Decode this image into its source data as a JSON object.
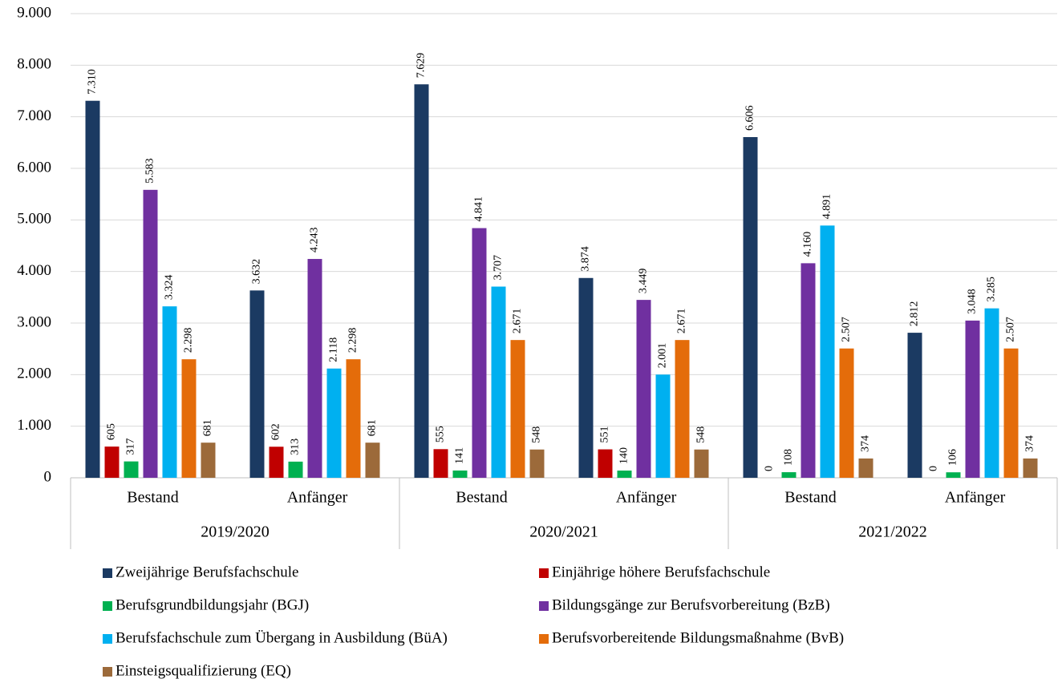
{
  "chart_data": {
    "type": "bar",
    "categories": [
      "Bestand",
      "Anfänger",
      "Bestand",
      "Anfänger",
      "Bestand",
      "Anfänger"
    ],
    "groups": [
      "2019/2020",
      "2020/2021",
      "2021/2022"
    ],
    "ylim": [
      0,
      9000
    ],
    "yticks": [
      0,
      {
        "value": 1000,
        "label": "1.000"
      },
      {
        "value": 2000,
        "label": "2.000"
      },
      {
        "value": 3000,
        "label": "3.000"
      },
      {
        "value": 4000,
        "label": "4.000"
      },
      {
        "value": 5000,
        "label": "5.000"
      },
      {
        "value": 6000,
        "label": "6.000"
      },
      {
        "value": 7000,
        "label": "7.000"
      },
      {
        "value": 8000,
        "label": "8.000"
      },
      {
        "value": 9000,
        "label": "9.000"
      }
    ],
    "grid": true,
    "legend": "bottom",
    "series": [
      {
        "name": "Zweijährige Berufsfachschule",
        "color": "#1b3a62",
        "values": [
          7310,
          3632,
          7629,
          3874,
          6606,
          2812
        ],
        "value_labels": [
          "7.310",
          "3.632",
          "7.629",
          "3.874",
          "6.606",
          "2.812"
        ]
      },
      {
        "name": "Einjährige höhere Berufsfachschule",
        "color": "#c00000",
        "values": [
          605,
          602,
          555,
          551,
          0,
          0
        ],
        "value_labels": [
          "605",
          "602",
          "555",
          "551",
          "0",
          "0"
        ]
      },
      {
        "name": "Berufsgrundbildungsjahr (BGJ)",
        "color": "#00b050",
        "values": [
          317,
          313,
          141,
          140,
          108,
          106
        ],
        "value_labels": [
          "317",
          "313",
          "141",
          "140",
          "108",
          "106"
        ]
      },
      {
        "name": "Bildungsgänge zur Berufsvorbereitung (BzB)",
        "color": "#7030a0",
        "values": [
          5583,
          4243,
          4841,
          3449,
          4160,
          3048
        ],
        "value_labels": [
          "5.583",
          "4.243",
          "4.841",
          "3.449",
          "4.160",
          "3.048"
        ]
      },
      {
        "name": "Berufsfachschule zum Übergang in Ausbildung (BüA)",
        "color": "#00b0f0",
        "values": [
          3324,
          2118,
          3707,
          2001,
          4891,
          3285
        ],
        "value_labels": [
          "3.324",
          "2.118",
          "3.707",
          "2.001",
          "4.891",
          "3.285"
        ]
      },
      {
        "name": "Berufsvorbereitende Bildungsmaßnahme (BvB)",
        "color": "#e46c0a",
        "values": [
          2298,
          2298,
          2671,
          2671,
          2507,
          2507
        ],
        "value_labels": [
          "2.298",
          "2.298",
          "2.671",
          "2.671",
          "2.507",
          "2.507"
        ]
      },
      {
        "name": "Einsteigsqualifizierung (EQ)",
        "color": "#9c6a3a",
        "values": [
          681,
          681,
          548,
          548,
          374,
          374
        ],
        "value_labels": [
          "681",
          "681",
          "548",
          "548",
          "374",
          "374"
        ]
      }
    ]
  }
}
